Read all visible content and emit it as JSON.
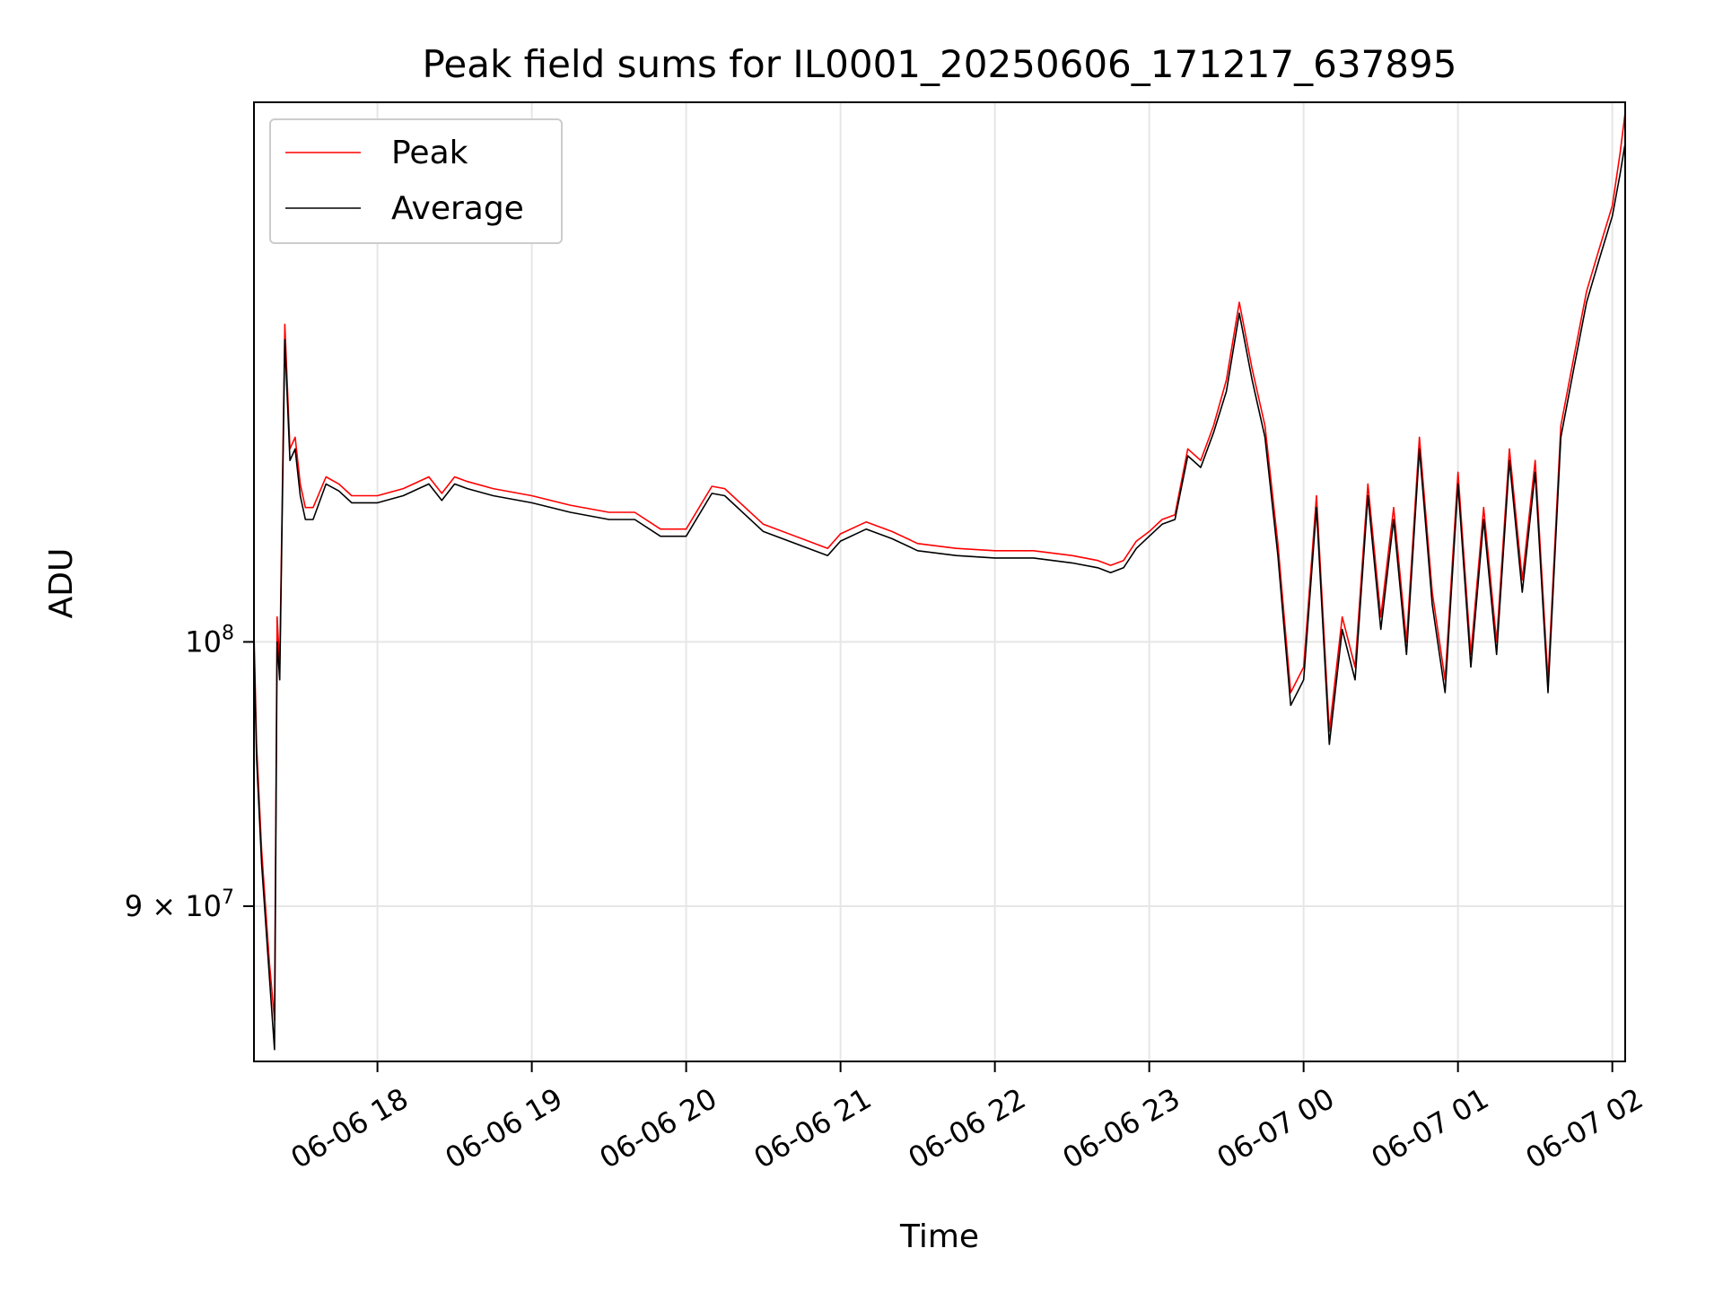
{
  "chart_data": {
    "type": "line",
    "title": "Peak field sums for IL0001_20250606_171217_637895",
    "xlabel": "Time",
    "ylabel": "ADU",
    "x_type": "datetime",
    "xlim": [
      "2025-06-06 17:12",
      "2025-06-07 02:05"
    ],
    "ylim": [
      84600000,
      124000000
    ],
    "y_scale": "log",
    "grid": true,
    "legend_position": "upper left",
    "x_ticks": [
      {
        "value": "2025-06-06 18:00",
        "label": "06-06 18"
      },
      {
        "value": "2025-06-06 19:00",
        "label": "06-06 19"
      },
      {
        "value": "2025-06-06 20:00",
        "label": "06-06 20"
      },
      {
        "value": "2025-06-06 21:00",
        "label": "06-06 21"
      },
      {
        "value": "2025-06-06 22:00",
        "label": "06-06 22"
      },
      {
        "value": "2025-06-06 23:00",
        "label": "06-06 23"
      },
      {
        "value": "2025-06-07 00:00",
        "label": "06-07 00"
      },
      {
        "value": "2025-06-07 01:00",
        "label": "06-07 01"
      },
      {
        "value": "2025-06-07 02:00",
        "label": "06-07 02"
      }
    ],
    "y_ticks": [
      {
        "value": 100000000,
        "base": "10",
        "exp": "8",
        "coef": ""
      },
      {
        "value": 90000000,
        "base": "10",
        "exp": "7",
        "coef": "9 × "
      }
    ],
    "series": [
      {
        "name": "Peak",
        "color": "#ff0000",
        "x": [
          "2025-06-06 17:12",
          "2025-06-06 17:13",
          "2025-06-06 17:15",
          "2025-06-06 17:18",
          "2025-06-06 17:20",
          "2025-06-06 17:21",
          "2025-06-06 17:22",
          "2025-06-06 17:24",
          "2025-06-06 17:26",
          "2025-06-06 17:28",
          "2025-06-06 17:30",
          "2025-06-06 17:32",
          "2025-06-06 17:35",
          "2025-06-06 17:40",
          "2025-06-06 17:45",
          "2025-06-06 17:50",
          "2025-06-06 18:00",
          "2025-06-06 18:10",
          "2025-06-06 18:20",
          "2025-06-06 18:25",
          "2025-06-06 18:30",
          "2025-06-06 18:35",
          "2025-06-06 18:45",
          "2025-06-06 19:00",
          "2025-06-06 19:15",
          "2025-06-06 19:30",
          "2025-06-06 19:40",
          "2025-06-06 19:50",
          "2025-06-06 20:00",
          "2025-06-06 20:10",
          "2025-06-06 20:15",
          "2025-06-06 20:30",
          "2025-06-06 20:45",
          "2025-06-06 20:55",
          "2025-06-06 21:00",
          "2025-06-06 21:10",
          "2025-06-06 21:20",
          "2025-06-06 21:30",
          "2025-06-06 21:45",
          "2025-06-06 22:00",
          "2025-06-06 22:15",
          "2025-06-06 22:30",
          "2025-06-06 22:40",
          "2025-06-06 22:45",
          "2025-06-06 22:50",
          "2025-06-06 22:55",
          "2025-06-06 23:00",
          "2025-06-06 23:05",
          "2025-06-06 23:10",
          "2025-06-06 23:15",
          "2025-06-06 23:20",
          "2025-06-06 23:25",
          "2025-06-06 23:30",
          "2025-06-06 23:35",
          "2025-06-06 23:40",
          "2025-06-06 23:45",
          "2025-06-06 23:50",
          "2025-06-06 23:55",
          "2025-06-07 00:00",
          "2025-06-07 00:05",
          "2025-06-07 00:10",
          "2025-06-07 00:15",
          "2025-06-07 00:20",
          "2025-06-07 00:25",
          "2025-06-07 00:30",
          "2025-06-07 00:35",
          "2025-06-07 00:40",
          "2025-06-07 00:45",
          "2025-06-07 00:50",
          "2025-06-07 00:55",
          "2025-06-07 01:00",
          "2025-06-07 01:05",
          "2025-06-07 01:10",
          "2025-06-07 01:15",
          "2025-06-07 01:20",
          "2025-06-07 01:25",
          "2025-06-07 01:30",
          "2025-06-07 01:35",
          "2025-06-07 01:40",
          "2025-06-07 01:45",
          "2025-06-07 01:50",
          "2025-06-07 01:55",
          "2025-06-07 02:00",
          "2025-06-07 02:03",
          "2025-06-07 02:05"
        ],
        "values": [
          100400000,
          96000000,
          92000000,
          88000000,
          86000000,
          101000000,
          99000000,
          113500000,
          108000000,
          108500000,
          106500000,
          105500000,
          105500000,
          106800000,
          106500000,
          106000000,
          106000000,
          106300000,
          106800000,
          106100000,
          106800000,
          106600000,
          106300000,
          106000000,
          105600000,
          105300000,
          105300000,
          104600000,
          104600000,
          106400000,
          106300000,
          104800000,
          104200000,
          103800000,
          104400000,
          104900000,
          104500000,
          104000000,
          103800000,
          103700000,
          103700000,
          103500000,
          103300000,
          103100000,
          103300000,
          104100000,
          104500000,
          105000000,
          105200000,
          108000000,
          107500000,
          109000000,
          111000000,
          114500000,
          111500000,
          109000000,
          104000000,
          98000000,
          99000000,
          106000000,
          96500000,
          101000000,
          99000000,
          106500000,
          101000000,
          105500000,
          100000000,
          108500000,
          102000000,
          98500000,
          107000000,
          99500000,
          105500000,
          100000000,
          108000000,
          102500000,
          107500000,
          98500000,
          109000000,
          112000000,
          115000000,
          117000000,
          119000000,
          121500000,
          123500000
        ]
      },
      {
        "name": "Average",
        "color": "#000000",
        "x": [
          "2025-06-06 17:12",
          "2025-06-06 17:13",
          "2025-06-06 17:15",
          "2025-06-06 17:18",
          "2025-06-06 17:20",
          "2025-06-06 17:21",
          "2025-06-06 17:22",
          "2025-06-06 17:24",
          "2025-06-06 17:26",
          "2025-06-06 17:28",
          "2025-06-06 17:30",
          "2025-06-06 17:32",
          "2025-06-06 17:35",
          "2025-06-06 17:40",
          "2025-06-06 17:45",
          "2025-06-06 17:50",
          "2025-06-06 18:00",
          "2025-06-06 18:10",
          "2025-06-06 18:20",
          "2025-06-06 18:25",
          "2025-06-06 18:30",
          "2025-06-06 18:35",
          "2025-06-06 18:45",
          "2025-06-06 19:00",
          "2025-06-06 19:15",
          "2025-06-06 19:30",
          "2025-06-06 19:40",
          "2025-06-06 19:50",
          "2025-06-06 20:00",
          "2025-06-06 20:10",
          "2025-06-06 20:15",
          "2025-06-06 20:30",
          "2025-06-06 20:45",
          "2025-06-06 20:55",
          "2025-06-06 21:00",
          "2025-06-06 21:10",
          "2025-06-06 21:20",
          "2025-06-06 21:30",
          "2025-06-06 21:45",
          "2025-06-06 22:00",
          "2025-06-06 22:15",
          "2025-06-06 22:30",
          "2025-06-06 22:40",
          "2025-06-06 22:45",
          "2025-06-06 22:50",
          "2025-06-06 22:55",
          "2025-06-06 23:00",
          "2025-06-06 23:05",
          "2025-06-06 23:10",
          "2025-06-06 23:15",
          "2025-06-06 23:20",
          "2025-06-06 23:25",
          "2025-06-06 23:30",
          "2025-06-06 23:35",
          "2025-06-06 23:40",
          "2025-06-06 23:45",
          "2025-06-06 23:50",
          "2025-06-06 23:55",
          "2025-06-07 00:00",
          "2025-06-07 00:05",
          "2025-06-07 00:10",
          "2025-06-07 00:15",
          "2025-06-07 00:20",
          "2025-06-07 00:25",
          "2025-06-07 00:30",
          "2025-06-07 00:35",
          "2025-06-07 00:40",
          "2025-06-07 00:45",
          "2025-06-07 00:50",
          "2025-06-07 00:55",
          "2025-06-07 01:00",
          "2025-06-07 01:05",
          "2025-06-07 01:10",
          "2025-06-07 01:15",
          "2025-06-07 01:20",
          "2025-06-07 01:25",
          "2025-06-07 01:30",
          "2025-06-07 01:35",
          "2025-06-07 01:40",
          "2025-06-07 01:45",
          "2025-06-07 01:50",
          "2025-06-07 01:55",
          "2025-06-07 02:00",
          "2025-06-07 02:03",
          "2025-06-07 02:05"
        ],
        "values": [
          100000000,
          95500000,
          91500000,
          87500000,
          85000000,
          100000000,
          98500000,
          112800000,
          107500000,
          108000000,
          106000000,
          105000000,
          105000000,
          106500000,
          106200000,
          105700000,
          105700000,
          106000000,
          106500000,
          105800000,
          106500000,
          106300000,
          106000000,
          105700000,
          105300000,
          105000000,
          105000000,
          104300000,
          104300000,
          106100000,
          106000000,
          104500000,
          103900000,
          103500000,
          104100000,
          104600000,
          104200000,
          103700000,
          103500000,
          103400000,
          103400000,
          103200000,
          103000000,
          102800000,
          103000000,
          103800000,
          104300000,
          104800000,
          105000000,
          107700000,
          107200000,
          108700000,
          110500000,
          114000000,
          111000000,
          108500000,
          103500000,
          97500000,
          98500000,
          105500000,
          96000000,
          100500000,
          98500000,
          106000000,
          100500000,
          105000000,
          99500000,
          108000000,
          101500000,
          98000000,
          106500000,
          99000000,
          105000000,
          99500000,
          107500000,
          102000000,
          107000000,
          98000000,
          108500000,
          111500000,
          114500000,
          116500000,
          118500000,
          120500000,
          122000000
        ]
      }
    ]
  }
}
